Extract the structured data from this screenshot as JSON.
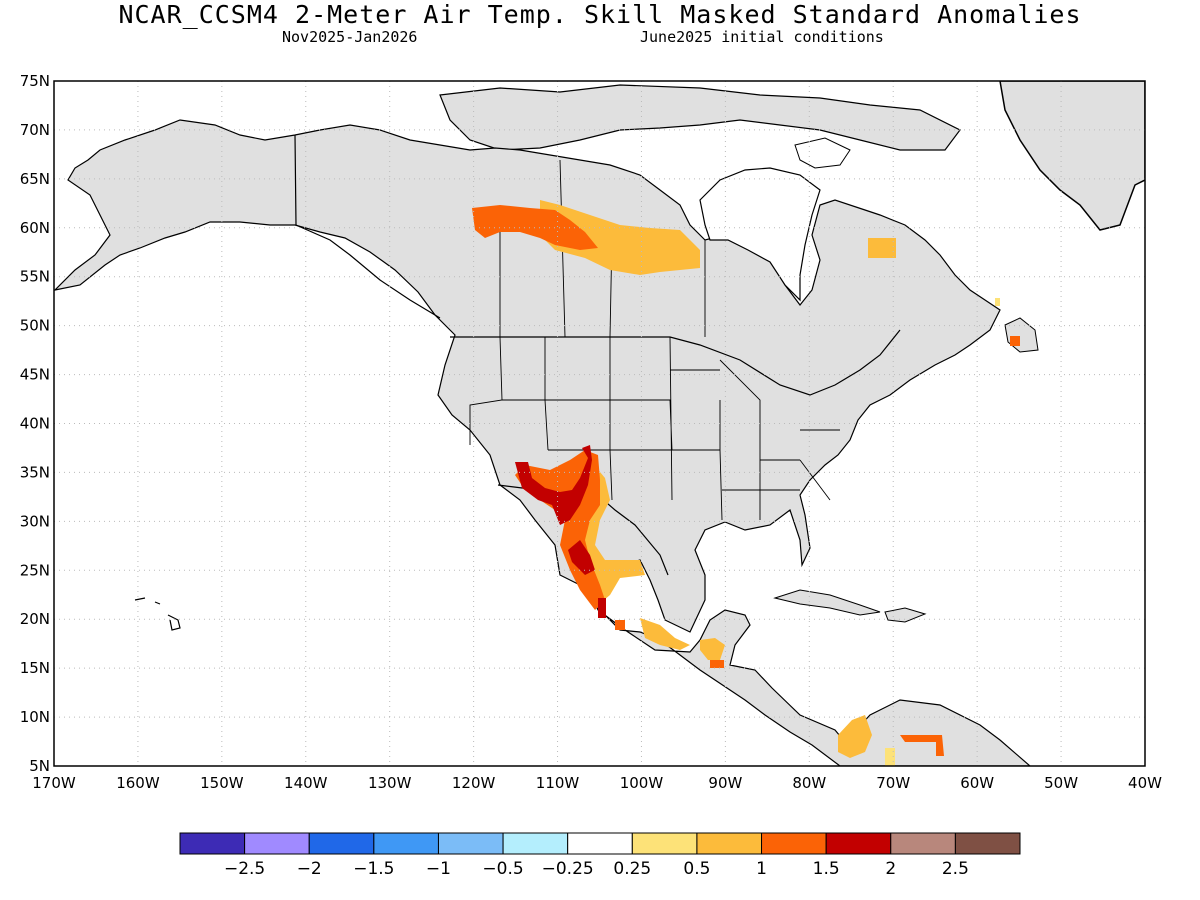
{
  "title": "NCAR_CCSM4 2-Meter Air Temp. Skill Masked Standard Anomalies",
  "subtitle_left": "Nov2025-Jan2026",
  "subtitle_right": "June2025 initial conditions",
  "map": {
    "lat_labels": [
      "75N",
      "70N",
      "65N",
      "60N",
      "55N",
      "50N",
      "45N",
      "40N",
      "35N",
      "30N",
      "25N",
      "20N",
      "15N",
      "10N",
      "5N"
    ],
    "lon_labels": [
      "170W",
      "160W",
      "150W",
      "140W",
      "130W",
      "120W",
      "110W",
      "100W",
      "90W",
      "80W",
      "70W",
      "60W",
      "50W",
      "40W"
    ],
    "land_color": "#e0e0e0",
    "anomalies": [
      {
        "region": "northern canada",
        "lon": [
          -120,
          -117,
          -114,
          -111,
          -108,
          -105,
          -102,
          -99
        ],
        "lat": [
          61,
          60.5,
          60,
          59,
          58.5,
          58,
          57.5,
          57
        ],
        "level": "1"
      },
      {
        "region": "quebec",
        "lon": [
          -73,
          -72
        ],
        "lat": [
          57,
          57
        ],
        "level": "0.5"
      },
      {
        "region": "newfoundland",
        "lon": [
          -56
        ],
        "lat": [
          48.5
        ],
        "level": "1.5"
      },
      {
        "region": "southwest us / mexico",
        "lon": [
          -114,
          -112,
          -110,
          -108,
          -106,
          -104
        ],
        "lat": [
          35,
          33,
          31,
          28,
          25,
          20
        ],
        "level": "1.5"
      },
      {
        "region": "central america",
        "lon": [
          -96,
          -92,
          -90
        ],
        "lat": [
          18,
          17,
          16
        ],
        "level": "0.5"
      },
      {
        "region": "northern south america",
        "lon": [
          -76,
          -72,
          -66
        ],
        "lat": [
          8,
          7,
          7
        ],
        "level": "1"
      }
    ]
  },
  "colorbar": {
    "colors": [
      "#3d2bb5",
      "#a08aff",
      "#2068e8",
      "#3f98f5",
      "#7bbcf7",
      "#b4eefd",
      "#ffffff",
      "#fde278",
      "#fcbb3b",
      "#fb6306",
      "#c20000",
      "#b8877c",
      "#7f5044"
    ],
    "labels": [
      "-2.5",
      "-2",
      "-1.5",
      "-1",
      "-0.5",
      "-0.25",
      "0.25",
      "0.5",
      "1",
      "1.5",
      "2",
      "2.5"
    ]
  }
}
